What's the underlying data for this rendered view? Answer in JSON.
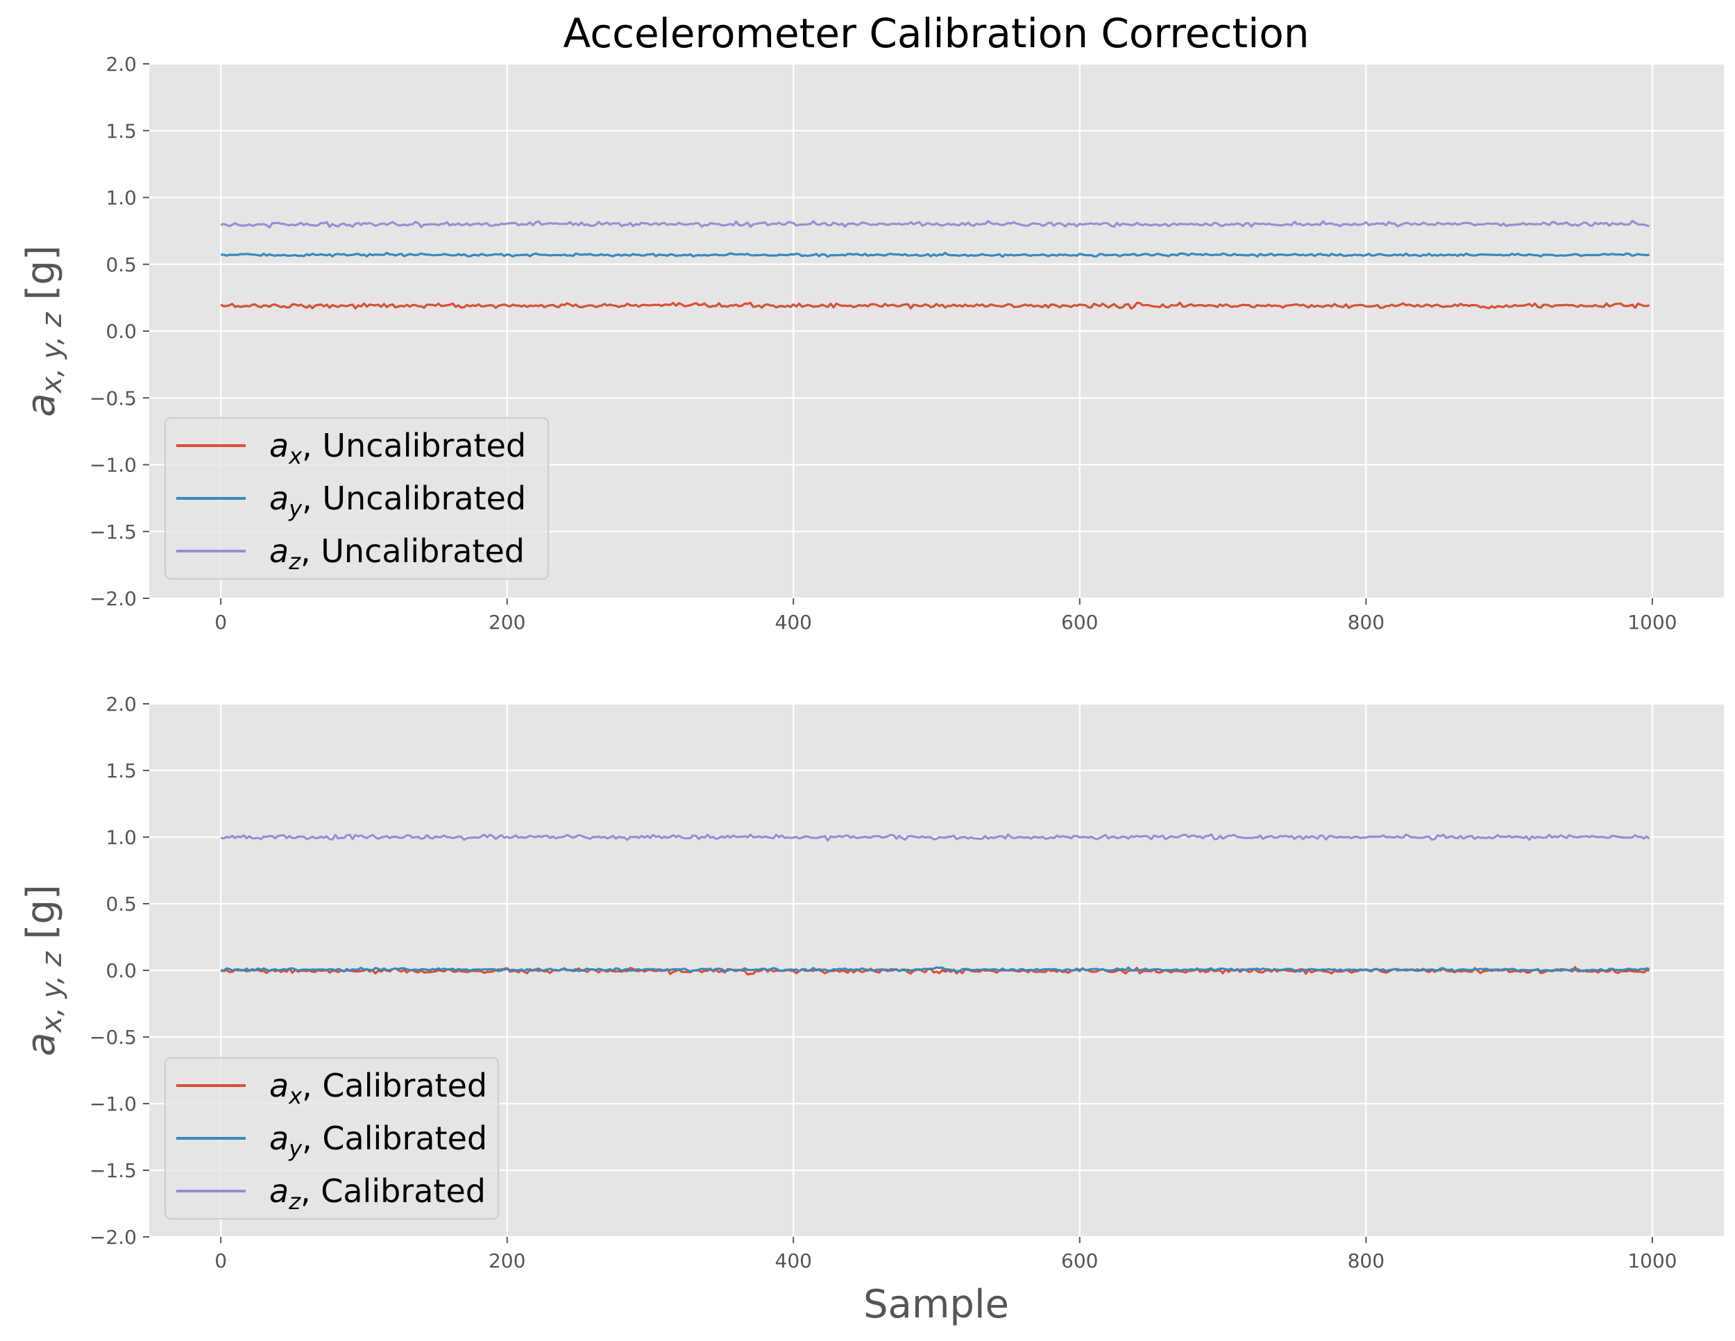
{
  "chart_data": [
    {
      "type": "line",
      "title": "Accelerometer Calibration Correction",
      "xlabel": "",
      "ylabel": "a_{x,y,z} [g]",
      "ylabel_parts": {
        "main": "a",
        "sub": "x, y, z",
        "unit": " [g]"
      },
      "xlim": [
        -50,
        1050
      ],
      "ylim": [
        -2.0,
        2.0
      ],
      "xticks": [
        "0",
        "200",
        "400",
        "600",
        "800",
        "1000"
      ],
      "yticks": [
        "2.0",
        "1.5",
        "1.0",
        "0.5",
        "0.0",
        "−0.5",
        "−1.0",
        "−1.5",
        "−2.0"
      ],
      "grid": true,
      "legend_position": "lower-left",
      "x_range": [
        0,
        999
      ],
      "series": [
        {
          "name": "a_x, Uncalibrated",
          "sym": "a",
          "sub": "x",
          "text": ", Uncalibrated",
          "color": "#e24a33",
          "mean": 0.19,
          "noise": 0.008
        },
        {
          "name": "a_y, Uncalibrated",
          "sym": "a",
          "sub": "y",
          "text": ", Uncalibrated",
          "color": "#348abd",
          "mean": 0.57,
          "noise": 0.005
        },
        {
          "name": "a_z, Uncalibrated",
          "sym": "a",
          "sub": "z",
          "text": ", Uncalibrated",
          "color": "#988ed5",
          "mean": 0.8,
          "noise": 0.008
        }
      ]
    },
    {
      "type": "line",
      "title": "",
      "xlabel": "Sample",
      "ylabel": "a_{x,y,z} [g]",
      "ylabel_parts": {
        "main": "a",
        "sub": "x, y, z",
        "unit": " [g]"
      },
      "xlim": [
        -50,
        1050
      ],
      "ylim": [
        -2.0,
        2.0
      ],
      "xticks": [
        "0",
        "200",
        "400",
        "600",
        "800",
        "1000"
      ],
      "yticks": [
        "2.0",
        "1.5",
        "1.0",
        "0.5",
        "0.0",
        "−0.5",
        "−1.0",
        "−1.5",
        "−2.0"
      ],
      "grid": true,
      "legend_position": "lower-left",
      "x_range": [
        0,
        999
      ],
      "series": [
        {
          "name": "a_x, Calibrated",
          "sym": "a",
          "sub": "x",
          "text": ", Calibrated",
          "color": "#e24a33",
          "mean": -0.005,
          "noise": 0.008
        },
        {
          "name": "a_y, Calibrated",
          "sym": "a",
          "sub": "y",
          "text": ", Calibrated",
          "color": "#348abd",
          "mean": 0.005,
          "noise": 0.005
        },
        {
          "name": "a_z, Calibrated",
          "sym": "a",
          "sub": "z",
          "text": ", Calibrated",
          "color": "#988ed5",
          "mean": 1.0,
          "noise": 0.008
        }
      ]
    }
  ]
}
